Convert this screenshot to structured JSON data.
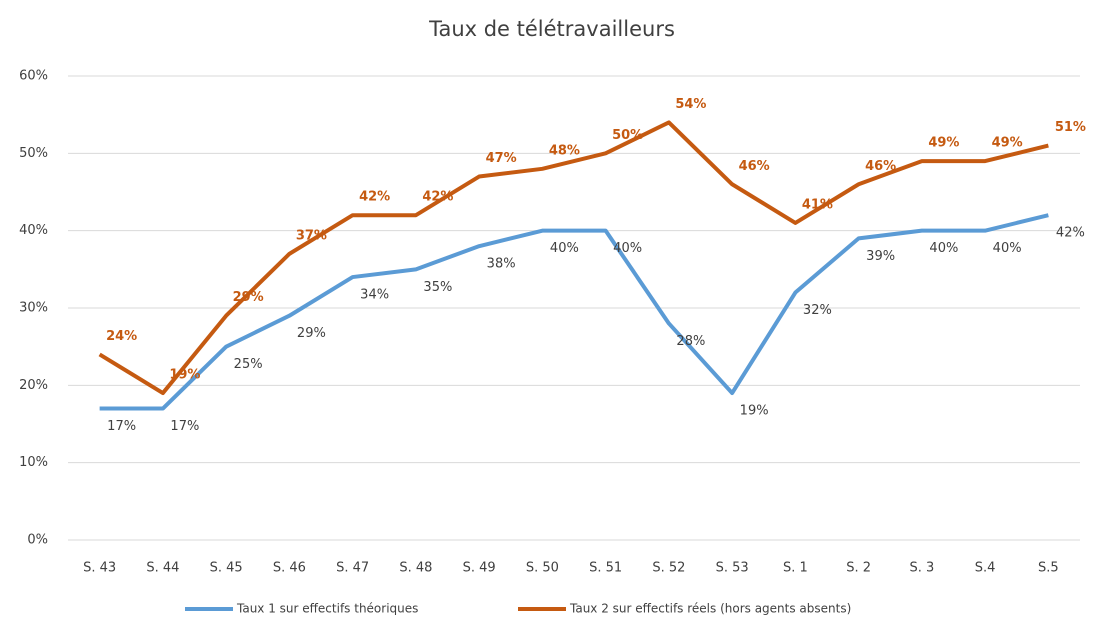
{
  "chart_data": {
    "type": "line",
    "title": "Taux de télétravailleurs",
    "categories": [
      "S. 43",
      "S. 44",
      "S. 45",
      "S. 46",
      "S. 47",
      "S. 48",
      "S. 49",
      "S. 50",
      "S. 51",
      "S. 52",
      "S. 53",
      "S. 1",
      "S. 2",
      "S. 3",
      "S.4",
      "S.5"
    ],
    "series": [
      {
        "name": "Taux 1 sur effectifs théoriques",
        "color": "#5b9bd5",
        "values": [
          17,
          17,
          25,
          29,
          34,
          35,
          38,
          40,
          40,
          28,
          19,
          32,
          39,
          40,
          40,
          42
        ],
        "value_labels": [
          "17%",
          "17%",
          "25%",
          "29%",
          "34%",
          "35%",
          "38%",
          "40%",
          "40%",
          "28%",
          "19%",
          "32%",
          "39%",
          "40%",
          "40%",
          "42%"
        ]
      },
      {
        "name": "Taux 2 sur effectifs réels (hors agents absents)",
        "color": "#c55a11",
        "values": [
          24,
          19,
          29,
          37,
          42,
          42,
          47,
          48,
          50,
          54,
          46,
          41,
          46,
          49,
          49,
          51
        ],
        "value_labels": [
          "24%",
          "19%",
          "29%",
          "37%",
          "42%",
          "42%",
          "47%",
          "48%",
          "50%",
          "54%",
          "46%",
          "41%",
          "46%",
          "49%",
          "49%",
          "51%"
        ]
      }
    ],
    "ylim": [
      0,
      60
    ],
    "yticks": [
      {
        "value": 0,
        "label": "0%"
      },
      {
        "value": 10,
        "label": "10%"
      },
      {
        "value": 20,
        "label": "20%"
      },
      {
        "value": 30,
        "label": "30%"
      },
      {
        "value": 40,
        "label": "40%"
      },
      {
        "value": 50,
        "label": "50%"
      },
      {
        "value": 60,
        "label": "60%"
      }
    ],
    "grid": true,
    "legend": "bottom"
  }
}
